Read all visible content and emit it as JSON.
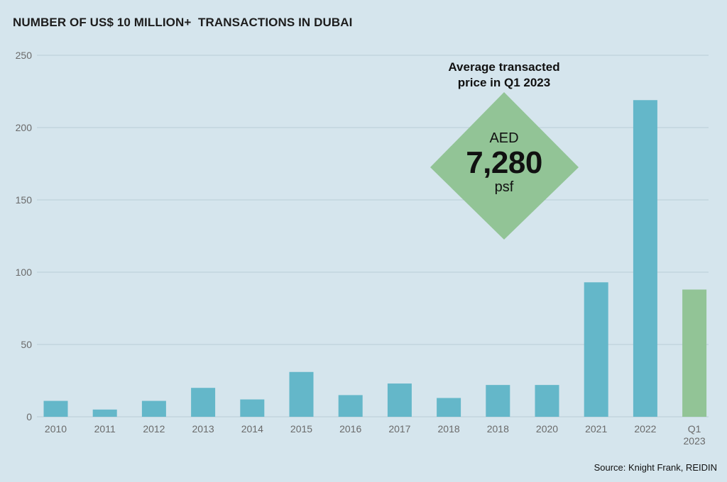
{
  "title": "NUMBER OF US$ 10 MILLION+  TRANSACTIONS IN DUBAI",
  "source": "Source: Knight Frank, REIDIN",
  "callout": {
    "title_line1": "Average transacted",
    "title_line2": "price in Q1 2023",
    "currency": "AED",
    "value": "7,280",
    "unit": "psf"
  },
  "colors": {
    "background": "#d5e5ed",
    "bar": "#64b7c9",
    "highlight": "#92c496",
    "diamond": "#92c496",
    "grid": "#b9cdd6"
  },
  "chart_data": {
    "type": "bar",
    "categories": [
      "2010",
      "2011",
      "2012",
      "2013",
      "2014",
      "2015",
      "2016",
      "2017",
      "2018",
      "2018",
      "2020",
      "2021",
      "2022",
      "Q1 2023"
    ],
    "values": [
      11,
      5,
      11,
      20,
      12,
      31,
      15,
      23,
      13,
      22,
      22,
      93,
      219,
      88
    ],
    "highlight_index": 13,
    "y_ticks": [
      0,
      50,
      100,
      150,
      200,
      250
    ],
    "ylim": [
      0,
      250
    ],
    "grid": true,
    "xlabel": "",
    "ylabel": ""
  }
}
